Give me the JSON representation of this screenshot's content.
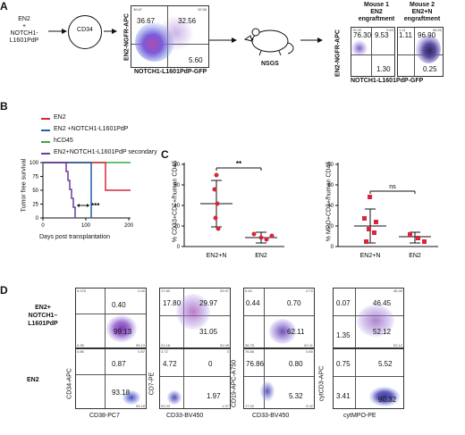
{
  "panel_labels": {
    "A": "A",
    "B": "B",
    "C": "C",
    "D": "D"
  },
  "panelA": {
    "construct_lines": [
      "EN2",
      "+",
      "NOTCH1-",
      "L1601PdP"
    ],
    "circle_label": "CD34",
    "flow1": {
      "y_axis": "EN2-NGFR-APC",
      "x_axis": "NOTCH1-L1601PdP-GFP",
      "q_tl": "36.67",
      "q_tr": "32.56",
      "q_bl": "",
      "q_br": "5.60",
      "corner_tl": "36.67",
      "corner_tr": "32.56"
    },
    "mouse_label": "NSGS",
    "mouse1_title": [
      "Mouse 1",
      "EN2",
      "engraftment"
    ],
    "mouse2_title": [
      "Mouse 2",
      "EN2+N",
      "engraftment"
    ],
    "flow2": {
      "y_axis": "EN2-NGFR-APC",
      "x_axis": "NOTCH1-L1601PdP-GFP",
      "m1": {
        "q_tl": "76.30",
        "q_tr": "9.53",
        "q_br": "1.30",
        "corner_tl": "76.30",
        "corner_tr": "9.53"
      },
      "m2": {
        "q_tl": "1.11",
        "q_tr": "96.90",
        "q_br": "0.25",
        "corner_tl": "1.11",
        "corner_tr": "96.90"
      }
    }
  },
  "panelB": {
    "legend": [
      {
        "label": "EN2",
        "color": "#d7263d"
      },
      {
        "label": "EN2 +NOTCH1-L1601PdP",
        "color": "#1f5fa8"
      },
      {
        "label": "hCD45",
        "color": "#3aa845"
      },
      {
        "label": "EN2+NOTCH1-L1601PdP secondary",
        "color": "#6a3d9a"
      }
    ],
    "y_label": "Tumor free survival",
    "x_label": "Days post transplantation",
    "y_ticks": [
      "0",
      "25",
      "50",
      "75",
      "100"
    ],
    "x_ticks": [
      "0",
      "100",
      "200"
    ],
    "sig": "***"
  },
  "panelC1": {
    "y_label": "% CD33+CD7+/human CD45",
    "y_ticks": [
      "0",
      "20",
      "40",
      "60",
      "80"
    ],
    "x_ticks": [
      "EN2+N",
      "EN2"
    ],
    "sig": "**"
  },
  "panelC2": {
    "y_label": "% MPO+CD3+/human CD45",
    "y_ticks": [
      "0",
      "20",
      "40",
      "60",
      "80"
    ],
    "x_ticks": [
      "EN2+N",
      "EN2"
    ],
    "sig": "ns"
  },
  "panelD": {
    "row_labels": [
      "EN2+\nNOTCH1–\nL1601PdP",
      "EN2"
    ],
    "row_label_top": [
      "EN2+",
      "NOTCH1–",
      "L1601PdP"
    ],
    "row_label_bottom": "EN2",
    "plots": [
      {
        "x_axis": "CD38-PC7",
        "y_axis": "CD34-APC",
        "top": {
          "tl": "0.40",
          "br": "99.13",
          "c_tl": "0.075",
          "c_tr": "0.40",
          "c_bl": "0.35",
          "c_br": "99.13"
        },
        "bot": {
          "tl": "0.87",
          "br": "93.18",
          "c_tl": "0.86",
          "c_tr": "0.87",
          "c_bl": "",
          "c_br": "93.18"
        }
      },
      {
        "x_axis": "CD33-BV450",
        "y_axis": "CD7-PE",
        "top": {
          "tl": "17.80",
          "tr": "29.97",
          "br": "31.05",
          "c_tl": "17.80",
          "c_tr": "29.97",
          "c_bl": "21.18",
          "c_br": "31.05"
        },
        "bot": {
          "tl": "4.72",
          "tr": "0",
          "br": "1.97",
          "c_tl": "4.72",
          "c_tr": "0",
          "c_bl": "93.33",
          "c_br": "1.97"
        }
      },
      {
        "x_axis": "CD33-BV450",
        "y_axis": "CD19-APC-A750",
        "top": {
          "tl": "0.44",
          "tr": "0.70",
          "br": "62.11",
          "c_tl": "0.44",
          "c_tr": "0.70",
          "c_bl": "36.75",
          "c_br": "62.11"
        },
        "bot": {
          "tl": "76.86",
          "tr": "0.80",
          "br": "5.32",
          "c_tl": "76.86",
          "c_tr": "0.80",
          "c_bl": "17.02",
          "c_br": "5.32"
        }
      },
      {
        "x_axis": "cytMPO-PE",
        "y_axis": "cytCD3-APC",
        "top": {
          "tl": "0.07",
          "tr": "46.45",
          "bl": "1.35",
          "br": "52.12",
          "c_tr": "46.45",
          "c_br": "52.12"
        },
        "bot": {
          "tl": "0.75",
          "tr": "5.52",
          "bl": "3.41",
          "br": "90.32"
        }
      }
    ]
  }
}
